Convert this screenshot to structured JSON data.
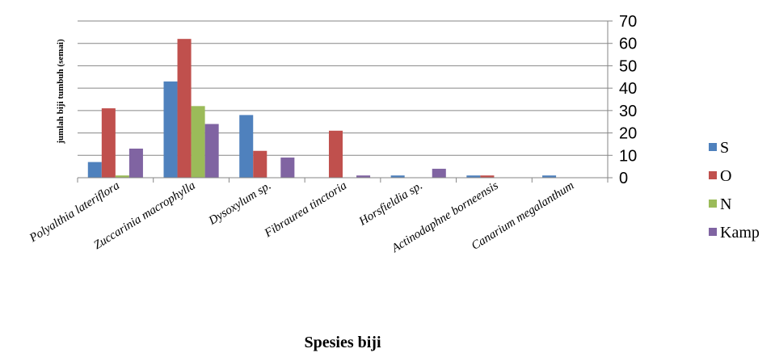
{
  "chart_data": {
    "type": "bar",
    "title": "",
    "xlabel": "Spesies biji",
    "ylabel": "jumlah biji tumbuh (semai)",
    "ylim": [
      0,
      70
    ],
    "yticks": [
      0,
      10,
      20,
      30,
      40,
      50,
      60,
      70
    ],
    "grid": true,
    "legend_position": "right",
    "categories": [
      "Polyalthia lateriflora",
      "Zuccarinia macrophylla",
      "Dysoxylum sp.",
      "Fibraurea tinctoria",
      "Horsfieldia sp.",
      "Actinodaphne borneensis",
      "Canarium megalanthum"
    ],
    "series": [
      {
        "name": "S",
        "color": "#4F81BD",
        "values": [
          7,
          43,
          28,
          0,
          1,
          1,
          1
        ]
      },
      {
        "name": "O",
        "color": "#C0504D",
        "values": [
          31,
          62,
          12,
          21,
          0,
          1,
          0
        ]
      },
      {
        "name": "N",
        "color": "#9BBB59",
        "values": [
          1,
          32,
          0,
          0,
          0,
          0,
          0
        ]
      },
      {
        "name": "Kamp",
        "color": "#8064A2",
        "values": [
          13,
          24,
          9,
          1,
          4,
          0,
          0
        ]
      }
    ]
  }
}
